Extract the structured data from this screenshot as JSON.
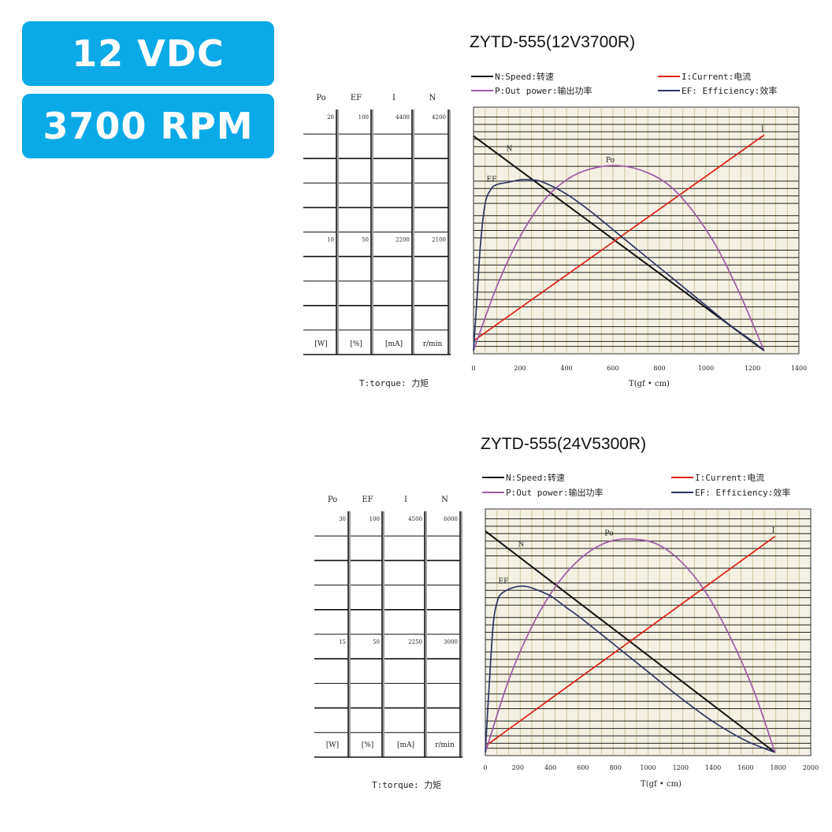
{
  "badges": {
    "voltage": "12 VDC",
    "speed": "3700 RPM"
  },
  "colors": {
    "badge": "#0aa9e8",
    "speed": "#111111",
    "current": "#e02010",
    "power": "#a05aa8",
    "efficiency": "#2c3566",
    "grid_v": "#c8b888",
    "grid_h": "#222222",
    "plot_bg": "#f4f1e4"
  },
  "chart_data": [
    {
      "type": "line",
      "title": "ZYTD-555(12V3700R)",
      "legend": {
        "speed": "N:Speed:转速",
        "current": "I:Current:电流",
        "power": "P:Out power:输出功率",
        "efficiency": "EF: Efficiency:效率"
      },
      "xlabel": "T(gf • cm)",
      "torque_label": "T:torque: 力矩",
      "xlim": [
        0,
        1400
      ],
      "x_ticks": [
        0,
        200,
        400,
        600,
        800,
        1000,
        1200,
        1400
      ],
      "side_scales": [
        {
          "name": "Po",
          "unit": "[W]",
          "top": "20",
          "mid": "10",
          "max": 20
        },
        {
          "name": "EF",
          "unit": "[%]",
          "top": "100",
          "mid": "50",
          "max": 100
        },
        {
          "name": "I",
          "unit": "[mA]",
          "top": "4400",
          "mid": "2200",
          "max": 4400
        },
        {
          "name": "N",
          "unit": "r/min",
          "top": "4200",
          "mid": "2100",
          "max": 4200
        }
      ],
      "series": [
        {
          "name": "N",
          "scale": "N",
          "x": [
            0,
            1250
          ],
          "values": [
            3800,
            0
          ]
        },
        {
          "name": "I",
          "scale": "I",
          "x": [
            0,
            1250
          ],
          "values": [
            180,
            4000
          ]
        },
        {
          "name": "Po",
          "scale": "Po",
          "x": [
            0,
            100,
            200,
            300,
            400,
            500,
            625,
            750,
            850,
            950,
            1050,
            1150,
            1250
          ],
          "values": [
            0,
            5.4,
            9.6,
            12.6,
            14.4,
            15.3,
            15.6,
            15.0,
            13.8,
            11.6,
            8.6,
            4.6,
            0
          ]
        },
        {
          "name": "EF",
          "scale": "EF",
          "x": [
            0,
            15,
            30,
            50,
            75,
            100,
            150,
            200,
            250,
            300,
            400,
            500,
            600,
            700,
            800,
            900,
            1000,
            1100,
            1200,
            1250
          ],
          "values": [
            0,
            22,
            45,
            62,
            68,
            70,
            71,
            72,
            72,
            71,
            66,
            59,
            51,
            43,
            35,
            27,
            19,
            11,
            4,
            0
          ]
        }
      ],
      "curve_labels": {
        "N": "N",
        "EF": "EF",
        "Po": "Po",
        "I": "I"
      }
    },
    {
      "type": "line",
      "title": "ZYTD-555(24V5300R)",
      "legend": {
        "speed": "N:Speed:转速",
        "current": "I:Current:电流",
        "power": "P:Out power:输出功率",
        "efficiency": "EF: Efficiency:效率"
      },
      "xlabel": "T(gf • cm)",
      "torque_label": "T:torque: 力矩",
      "xlim": [
        0,
        2000
      ],
      "x_ticks": [
        0,
        200,
        400,
        600,
        800,
        1000,
        1200,
        1400,
        1600,
        1800,
        2000
      ],
      "side_scales": [
        {
          "name": "Po",
          "unit": "[W]",
          "top": "30",
          "mid": "15",
          "max": 30
        },
        {
          "name": "EF",
          "unit": "[%]",
          "top": "100",
          "mid": "50",
          "max": 100
        },
        {
          "name": "I",
          "unit": "[mA]",
          "top": "4500",
          "mid": "2250",
          "max": 4500
        },
        {
          "name": "N",
          "unit": "r/min",
          "top": "6000",
          "mid": "3000",
          "max": 6000
        }
      ],
      "series": [
        {
          "name": "N",
          "scale": "N",
          "x": [
            0,
            1780
          ],
          "values": [
            5600,
            0
          ]
        },
        {
          "name": "I",
          "scale": "I",
          "x": [
            0,
            1780
          ],
          "values": [
            120,
            4100
          ]
        },
        {
          "name": "Po",
          "scale": "Po",
          "x": [
            0,
            150,
            300,
            450,
            600,
            750,
            890,
            1050,
            1200,
            1350,
            1500,
            1650,
            1780
          ],
          "values": [
            0,
            9.5,
            16.5,
            21.5,
            24.8,
            26.6,
            27.0,
            26.4,
            24.2,
            20.4,
            14.8,
            7.8,
            0
          ]
        },
        {
          "name": "EF",
          "scale": "EF",
          "x": [
            0,
            25,
            50,
            75,
            100,
            150,
            200,
            250,
            300,
            400,
            500,
            600,
            800,
            1000,
            1200,
            1400,
            1600,
            1780
          ],
          "values": [
            0,
            30,
            55,
            64,
            67,
            69,
            70,
            70,
            69,
            66,
            61,
            56,
            45,
            34,
            23,
            13,
            5,
            0
          ]
        }
      ],
      "curve_labels": {
        "N": "N",
        "EF": "EF",
        "Po": "Po",
        "I": "I"
      }
    }
  ]
}
